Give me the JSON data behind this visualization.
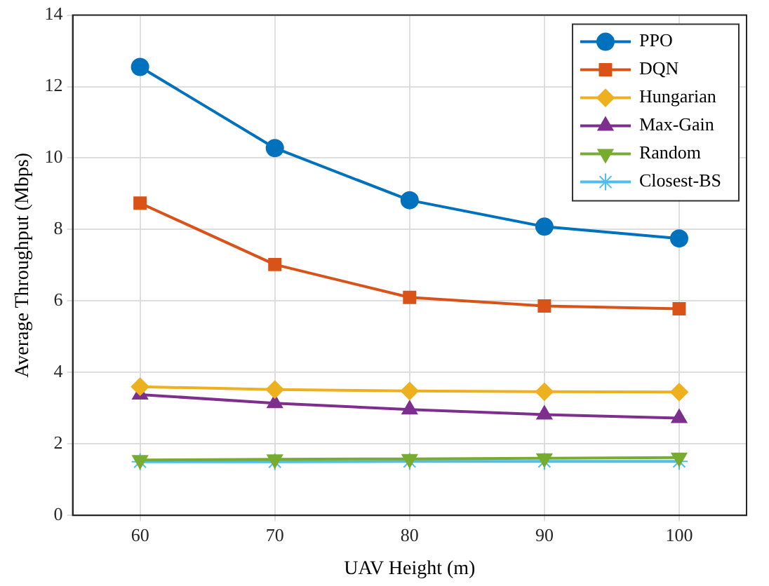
{
  "chart_data": {
    "type": "line",
    "xlabel": "UAV Height (m)",
    "ylabel": "Average Throughput (Mbps)",
    "x": [
      60,
      70,
      80,
      90,
      100
    ],
    "xlim": [
      55,
      105
    ],
    "xticks": [
      60,
      70,
      80,
      90,
      100
    ],
    "ylim": [
      0,
      14
    ],
    "yticks": [
      0,
      2,
      4,
      6,
      8,
      10,
      12,
      14
    ],
    "grid": true,
    "legend": "top right",
    "line_style": "solid",
    "series": [
      {
        "name": "PPO",
        "color": "#0072bd",
        "marker": "circle",
        "values": [
          12.55,
          10.28,
          8.82,
          8.08,
          7.75
        ]
      },
      {
        "name": "DQN",
        "color": "#d95319",
        "marker": "square",
        "values": [
          8.74,
          7.02,
          6.1,
          5.86,
          5.78
        ]
      },
      {
        "name": "Hungarian",
        "color": "#edb120",
        "marker": "diamond",
        "values": [
          3.6,
          3.52,
          3.48,
          3.46,
          3.45
        ]
      },
      {
        "name": "Max-Gain",
        "color": "#7e2f8e",
        "marker": "triangle",
        "values": [
          3.38,
          3.14,
          2.96,
          2.82,
          2.72
        ]
      },
      {
        "name": "Random",
        "color": "#77ac30",
        "marker": "triangle-down",
        "values": [
          1.55,
          1.57,
          1.58,
          1.6,
          1.62
        ]
      },
      {
        "name": "Closest-BS",
        "color": "#4dbeee",
        "marker": "cross",
        "values": [
          1.5,
          1.5,
          1.51,
          1.51,
          1.51
        ]
      }
    ]
  }
}
